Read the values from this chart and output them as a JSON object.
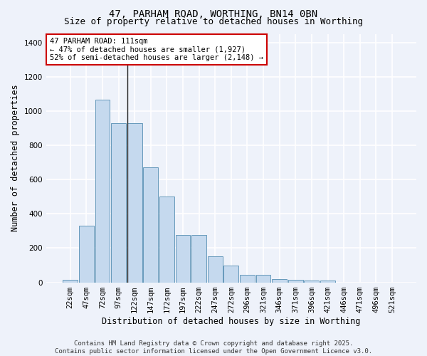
{
  "title1": "47, PARHAM ROAD, WORTHING, BN14 0BN",
  "title2": "Size of property relative to detached houses in Worthing",
  "xlabel": "Distribution of detached houses by size in Worthing",
  "ylabel": "Number of detached properties",
  "categories": [
    "22sqm",
    "47sqm",
    "72sqm",
    "97sqm",
    "122sqm",
    "147sqm",
    "172sqm",
    "197sqm",
    "222sqm",
    "247sqm",
    "272sqm",
    "296sqm",
    "321sqm",
    "346sqm",
    "371sqm",
    "396sqm",
    "421sqm",
    "446sqm",
    "471sqm",
    "496sqm",
    "521sqm"
  ],
  "values": [
    15,
    330,
    1065,
    930,
    930,
    670,
    500,
    275,
    275,
    150,
    100,
    45,
    45,
    20,
    15,
    10,
    10,
    0,
    0,
    0,
    0
  ],
  "bar_color": "#c5d9ee",
  "bar_edge_color": "#6699bb",
  "bg_color": "#eef2fa",
  "grid_color": "#ffffff",
  "annotation_text": "47 PARHAM ROAD: 111sqm\n← 47% of detached houses are smaller (1,927)\n52% of semi-detached houses are larger (2,148) →",
  "annotation_box_color": "#ffffff",
  "annotation_box_edge": "#cc0000",
  "ylim": [
    0,
    1450
  ],
  "yticks": [
    0,
    200,
    400,
    600,
    800,
    1000,
    1200,
    1400
  ],
  "footer": "Contains HM Land Registry data © Crown copyright and database right 2025.\nContains public sector information licensed under the Open Government Licence v3.0.",
  "title_fontsize": 10,
  "subtitle_fontsize": 9,
  "axis_label_fontsize": 8.5,
  "tick_fontsize": 7.5,
  "annotation_fontsize": 7.5,
  "footer_fontsize": 6.5
}
